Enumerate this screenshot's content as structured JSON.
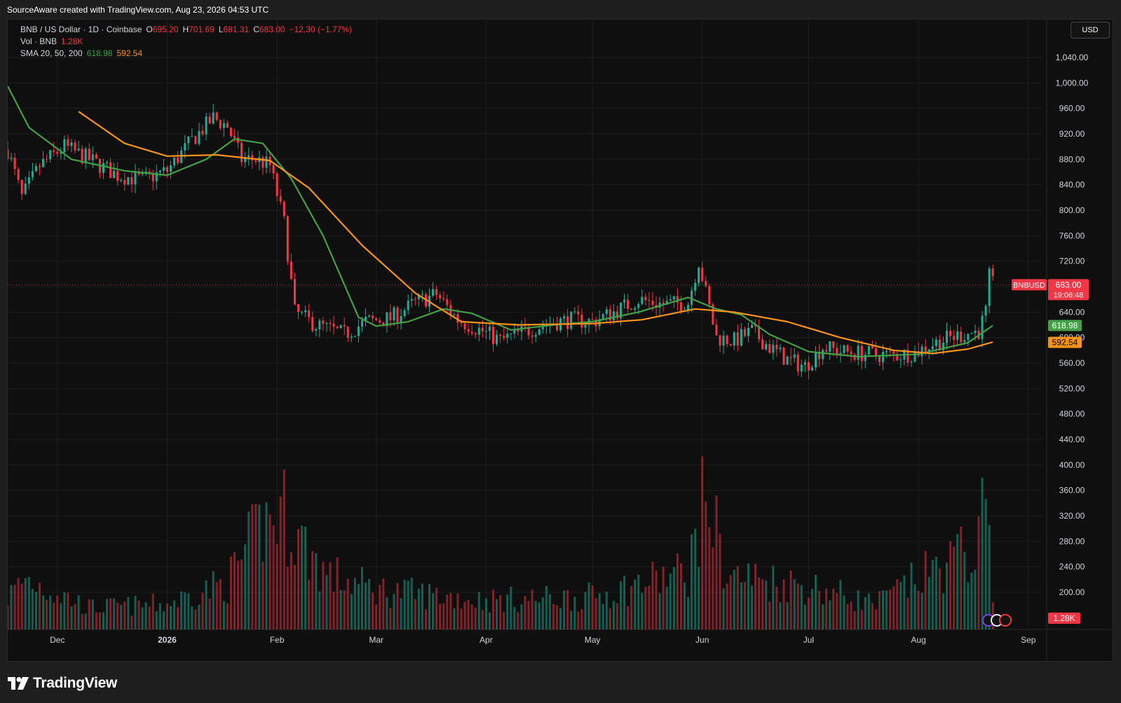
{
  "attribution": "SourceAware created with TradingView.com, Aug 23, 2026 04:53 UTC",
  "currency": "USD",
  "brand": "TradingView",
  "legend": {
    "symbol": "BNB / US Dollar · 1D · Coinbase",
    "open_label": "O",
    "open": "695.20",
    "high_label": "H",
    "high": "701.69",
    "low_label": "L",
    "low": "681.31",
    "close_label": "C",
    "close": "683.00",
    "change": "−12.30 (−1.77%)",
    "vol_label": "Vol · BNB",
    "vol_value": "1.28K",
    "sma_label": "SMA 20, 50, 200",
    "sma_a_value": "618.98",
    "sma_b_value": "592.54"
  },
  "colors": {
    "up": "#22ab94",
    "down": "#f23645",
    "sma_fast": "#43a047",
    "sma_slow": "#f7931a",
    "background": "#0f0f0f",
    "grid": "#1f1f1f",
    "axis_text": "#d1d4dc"
  },
  "chart_data": {
    "type": "candlestick",
    "symbol": "BNBUSD",
    "x_range": [
      "2025-11-17",
      "2026-09-05"
    ],
    "price_axis": {
      "ticks": [
        200,
        240,
        280,
        320,
        360,
        400,
        440,
        480,
        520,
        560,
        600,
        640,
        680,
        720,
        760,
        800,
        840,
        880,
        920,
        960,
        1000,
        1040
      ]
    },
    "x_ticks": [
      {
        "date": "2025-12-01",
        "label": "Dec"
      },
      {
        "date": "2026-01-01",
        "label": "2026"
      },
      {
        "date": "2026-02-01",
        "label": "Feb"
      },
      {
        "date": "2026-03-01",
        "label": "Mar"
      },
      {
        "date": "2026-04-01",
        "label": "Apr"
      },
      {
        "date": "2026-05-01",
        "label": "May"
      },
      {
        "date": "2026-06-01",
        "label": "Jun"
      },
      {
        "date": "2026-07-01",
        "label": "Jul"
      },
      {
        "date": "2026-08-01",
        "label": "Aug"
      },
      {
        "date": "2026-09-01",
        "label": "Sep"
      }
    ],
    "price_keypoints": [
      [
        "2025-11-17",
        895
      ],
      [
        "2025-11-21",
        820
      ],
      [
        "2025-11-26",
        870
      ],
      [
        "2025-12-03",
        900
      ],
      [
        "2025-12-10",
        880
      ],
      [
        "2025-12-18",
        855
      ],
      [
        "2025-12-25",
        848
      ],
      [
        "2026-01-01",
        862
      ],
      [
        "2026-01-08",
        910
      ],
      [
        "2026-01-14",
        945
      ],
      [
        "2026-01-18",
        932
      ],
      [
        "2026-01-22",
        880
      ],
      [
        "2026-01-26",
        880
      ],
      [
        "2026-01-30",
        870
      ],
      [
        "2026-02-03",
        780
      ],
      [
        "2026-02-06",
        640
      ],
      [
        "2026-02-12",
        620
      ],
      [
        "2026-02-20",
        605
      ],
      [
        "2026-02-26",
        625
      ],
      [
        "2026-03-05",
        630
      ],
      [
        "2026-03-12",
        655
      ],
      [
        "2026-03-18",
        668
      ],
      [
        "2026-03-24",
        628
      ],
      [
        "2026-03-31",
        610
      ],
      [
        "2026-04-05",
        595
      ],
      [
        "2026-04-12",
        610
      ],
      [
        "2026-04-18",
        622
      ],
      [
        "2026-04-25",
        628
      ],
      [
        "2026-05-01",
        625
      ],
      [
        "2026-05-07",
        640
      ],
      [
        "2026-05-14",
        660
      ],
      [
        "2026-05-21",
        652
      ],
      [
        "2026-05-28",
        655
      ],
      [
        "2026-05-31",
        720
      ],
      [
        "2026-06-02",
        670
      ],
      [
        "2026-06-05",
        600
      ],
      [
        "2026-06-10",
        595
      ],
      [
        "2026-06-15",
        610
      ],
      [
        "2026-06-20",
        585
      ],
      [
        "2026-06-25",
        565
      ],
      [
        "2026-06-30",
        555
      ],
      [
        "2026-07-05",
        585
      ],
      [
        "2026-07-10",
        578
      ],
      [
        "2026-07-18",
        574
      ],
      [
        "2026-07-25",
        572
      ],
      [
        "2026-07-31",
        576
      ],
      [
        "2026-08-04",
        588
      ],
      [
        "2026-08-10",
        600
      ],
      [
        "2026-08-15",
        607
      ],
      [
        "2026-08-18",
        610
      ],
      [
        "2026-08-20",
        640
      ],
      [
        "2026-08-21",
        695
      ],
      [
        "2026-08-22",
        683
      ]
    ],
    "sma_fast": [
      [
        "2025-11-17",
        995
      ],
      [
        "2025-11-23",
        930
      ],
      [
        "2025-12-05",
        880
      ],
      [
        "2025-12-20",
        862
      ],
      [
        "2026-01-01",
        855
      ],
      [
        "2026-01-12",
        880
      ],
      [
        "2026-01-20",
        912
      ],
      [
        "2026-01-28",
        905
      ],
      [
        "2026-02-05",
        850
      ],
      [
        "2026-02-14",
        760
      ],
      [
        "2026-02-24",
        632
      ],
      [
        "2026-03-01",
        618
      ],
      [
        "2026-03-10",
        625
      ],
      [
        "2026-03-20",
        645
      ],
      [
        "2026-03-28",
        638
      ],
      [
        "2026-04-08",
        612
      ],
      [
        "2026-04-20",
        620
      ],
      [
        "2026-05-01",
        625
      ],
      [
        "2026-05-14",
        640
      ],
      [
        "2026-05-28",
        663
      ],
      [
        "2026-06-05",
        645
      ],
      [
        "2026-06-12",
        636
      ],
      [
        "2026-06-20",
        605
      ],
      [
        "2026-07-01",
        578
      ],
      [
        "2026-07-15",
        570
      ],
      [
        "2026-08-01",
        574
      ],
      [
        "2026-08-15",
        592
      ],
      [
        "2026-08-22",
        619
      ]
    ],
    "sma_slow": [
      [
        "2025-12-07",
        955
      ],
      [
        "2025-12-20",
        905
      ],
      [
        "2026-01-01",
        885
      ],
      [
        "2026-01-15",
        887
      ],
      [
        "2026-01-30",
        878
      ],
      [
        "2026-02-10",
        835
      ],
      [
        "2026-02-25",
        745
      ],
      [
        "2026-03-12",
        670
      ],
      [
        "2026-03-25",
        625
      ],
      [
        "2026-04-10",
        620
      ],
      [
        "2026-05-01",
        622
      ],
      [
        "2026-05-15",
        628
      ],
      [
        "2026-05-30",
        645
      ],
      [
        "2026-06-10",
        640
      ],
      [
        "2026-06-25",
        625
      ],
      [
        "2026-07-10",
        600
      ],
      [
        "2026-07-25",
        580
      ],
      [
        "2026-08-05",
        575
      ],
      [
        "2026-08-15",
        582
      ],
      [
        "2026-08-22",
        593
      ]
    ],
    "volume_keypoints_k": [
      [
        "2025-11-17",
        0.9
      ],
      [
        "2025-11-22",
        1.4
      ],
      [
        "2025-12-10",
        0.6
      ],
      [
        "2026-01-01",
        0.7
      ],
      [
        "2026-01-18",
        1.3
      ],
      [
        "2026-01-28",
        2.9
      ],
      [
        "2026-02-03",
        3.2
      ],
      [
        "2026-02-08",
        2.4
      ],
      [
        "2026-02-15",
        1.5
      ],
      [
        "2026-03-01",
        1.1
      ],
      [
        "2026-04-01",
        0.8
      ],
      [
        "2026-05-01",
        0.9
      ],
      [
        "2026-05-28",
        1.6
      ],
      [
        "2026-06-02",
        3.8
      ],
      [
        "2026-06-08",
        1.5
      ],
      [
        "2026-07-01",
        1.2
      ],
      [
        "2026-07-20",
        0.7
      ],
      [
        "2026-08-01",
        1.4
      ],
      [
        "2026-08-18",
        2.3
      ],
      [
        "2026-08-21",
        4.2
      ],
      [
        "2026-08-22",
        1.28
      ]
    ],
    "last_label": "BNBUSD",
    "last_price": "683.00",
    "countdown": "19:06:48",
    "sma_fast_last": "618.98",
    "sma_slow_last": "592.54",
    "volume_last": "1.28K",
    "volume_axis_ticks_k": [
      1,
      2,
      3,
      4
    ],
    "grid": true,
    "legend_position": "top-left"
  }
}
